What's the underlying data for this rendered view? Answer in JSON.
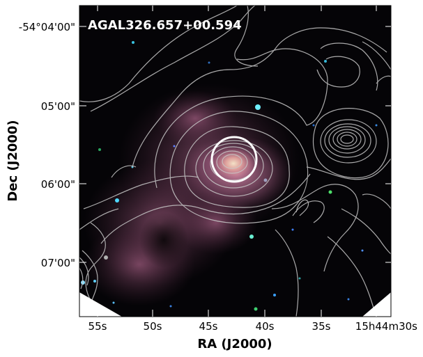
{
  "figure": {
    "source_name": "AGAL326.657+00.594",
    "x_axis": {
      "title": "RA (J2000)",
      "ticks": [
        "55s",
        "50s",
        "45s",
        "40s",
        "35s",
        "15h44m30s"
      ]
    },
    "y_axis": {
      "title": "Dec (J2000)",
      "ticks": [
        "-54°04'00\"",
        "05'00\"",
        "06'00\"",
        "07'00\""
      ]
    },
    "colors": {
      "background": "#050407",
      "nebula": "#c0769a",
      "contour": "#c8c8c8",
      "marker_circle": "#ffffff",
      "label": "#ffffff"
    }
  }
}
